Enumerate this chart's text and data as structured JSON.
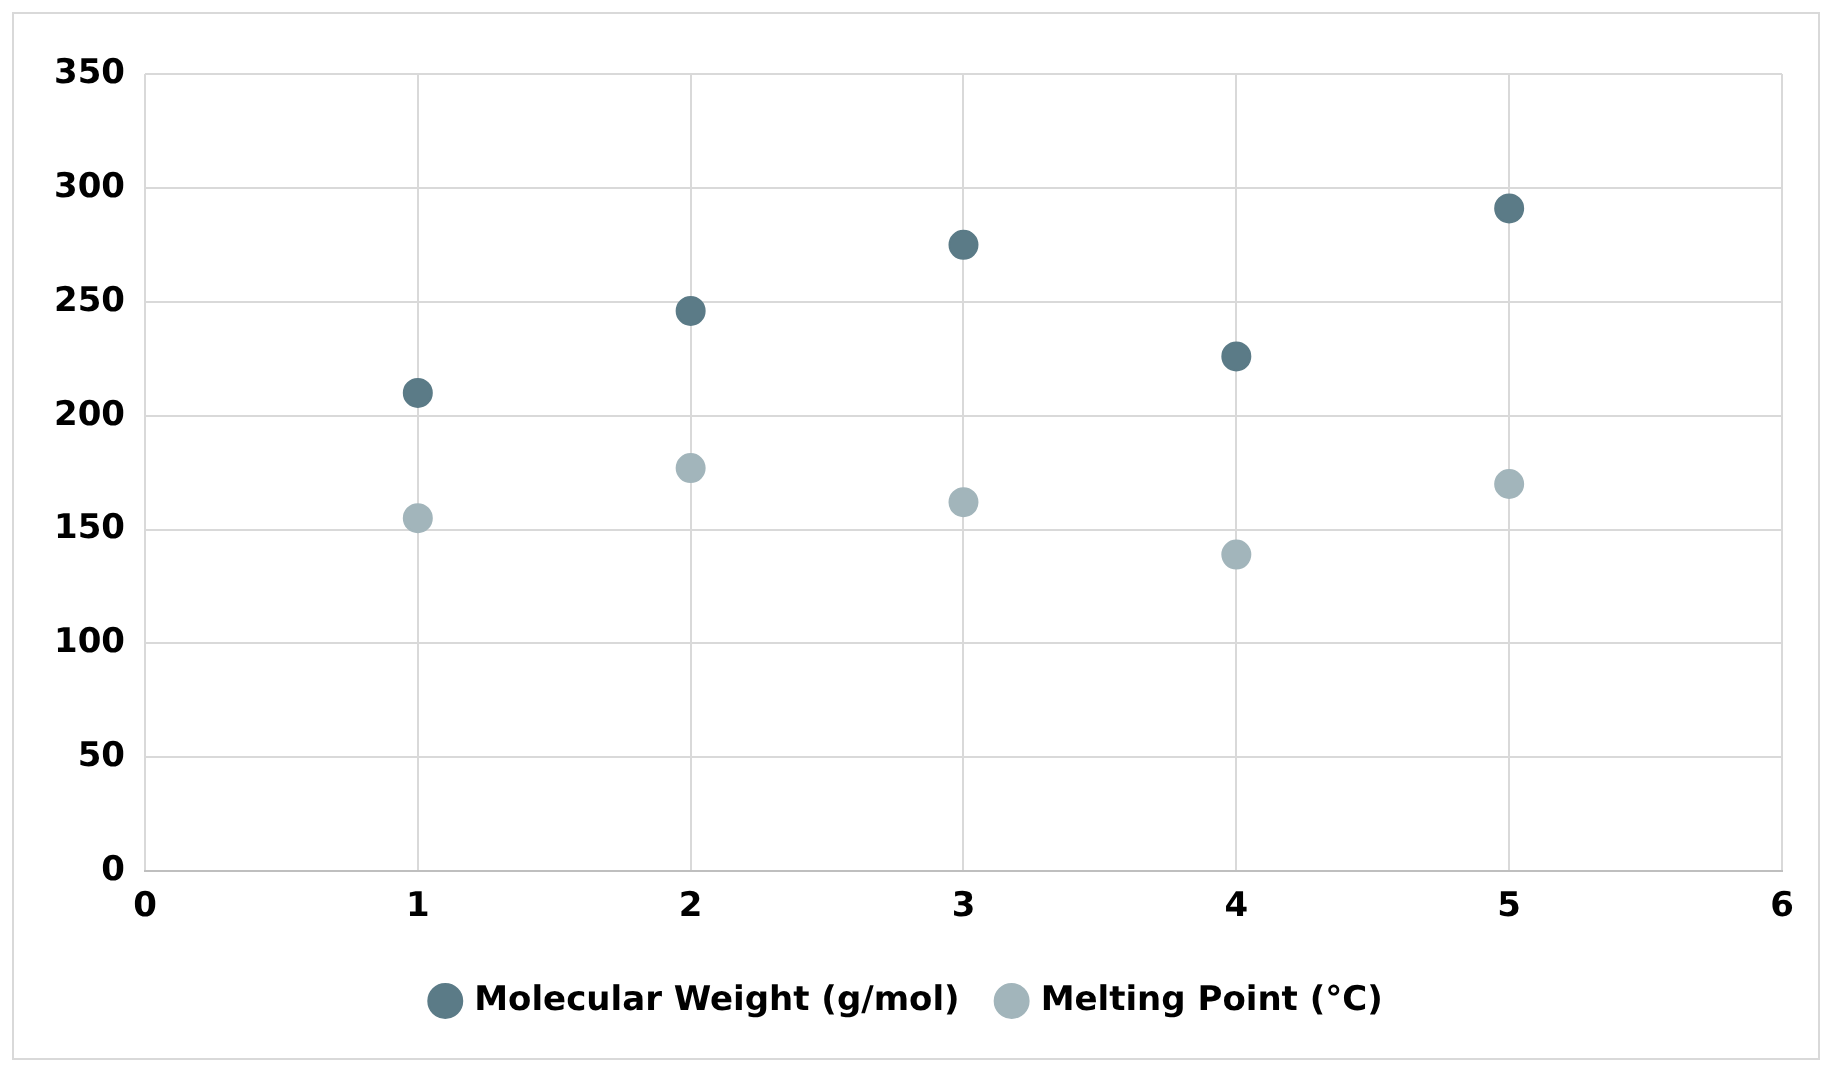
{
  "chart_data": {
    "type": "scatter",
    "x": [
      1,
      2,
      3,
      4,
      5
    ],
    "series": [
      {
        "name": "Molecular Weight (g/mol)",
        "color": "#5b7b87",
        "values": [
          210,
          246,
          275,
          226,
          291
        ]
      },
      {
        "name": "Melting Point (°C)",
        "color": "#a2b5bb",
        "values": [
          155,
          177,
          162,
          139,
          170
        ]
      }
    ],
    "xlim": [
      0,
      6
    ],
    "xticks": [
      0,
      1,
      2,
      3,
      4,
      5,
      6
    ],
    "ylim": [
      0,
      350
    ],
    "yticks": [
      0,
      50,
      100,
      150,
      200,
      250,
      300,
      350
    ],
    "grid": true,
    "legend": "bottom",
    "marker": "circle"
  }
}
